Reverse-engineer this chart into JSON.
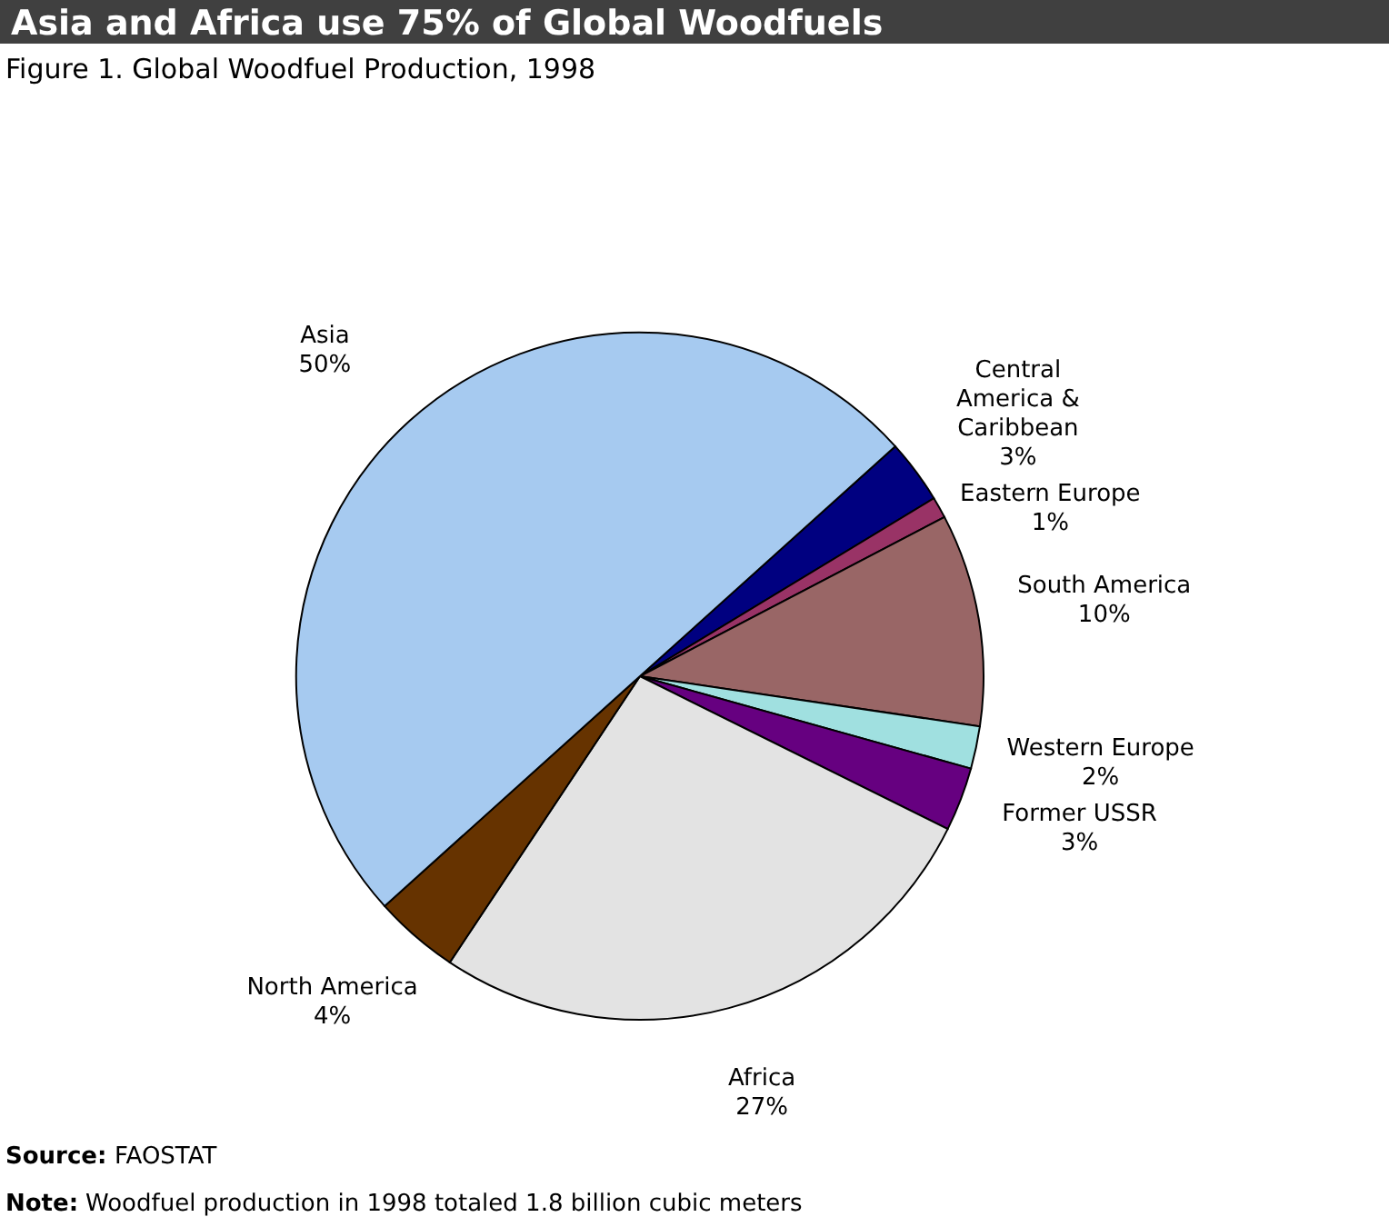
{
  "chart_data": {
    "type": "pie",
    "title": "Asia and Africa use 75% of Global Woodfuels",
    "subtitle": "Figure 1. Global Woodfuel Production, 1998",
    "categories": [
      "Central America & Caribbean",
      "Eastern Europe",
      "South America",
      "Western Europe",
      "Former USSR",
      "Africa",
      "North America",
      "Asia"
    ],
    "values": [
      3,
      1,
      10,
      2,
      3,
      27,
      4,
      50
    ],
    "value_labels": [
      "3%",
      "1%",
      "10%",
      "2%",
      "3%",
      "27%",
      "4%",
      "50%"
    ],
    "colors": [
      "#000080",
      "#993366",
      "#996666",
      "#a0e0e0",
      "#660080",
      "#e3e3e3",
      "#663300",
      "#a6caf0"
    ],
    "annotations": [
      "Source: FAOSTAT",
      "Note: Woodfuel production in 1998 totaled 1.8 billion cubic meters"
    ]
  }
}
